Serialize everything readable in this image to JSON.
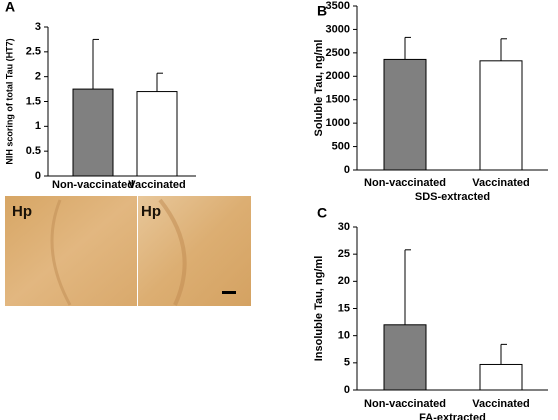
{
  "chart_data": [
    {
      "type": "bar",
      "panel": "A",
      "ylabel": "NIH scoring of total Tau (HT7)",
      "categories": [
        "Non-vaccinated",
        "Vaccinated"
      ],
      "values": [
        1.75,
        1.7
      ],
      "errors": [
        1.0,
        0.37
      ],
      "colors": [
        "#808080",
        "#ffffff"
      ],
      "ylim": [
        0,
        3
      ],
      "yticks": [
        0,
        0.5,
        1,
        1.5,
        2,
        2.5,
        3
      ]
    },
    {
      "type": "bar",
      "panel": "B",
      "ylabel": "Soluble Tau, ng/ml",
      "xlabel": "SDS-extracted",
      "categories": [
        "Non-vaccinated",
        "Vaccinated"
      ],
      "values": [
        2360,
        2330
      ],
      "errors": [
        470,
        470
      ],
      "colors": [
        "#808080",
        "#ffffff"
      ],
      "ylim": [
        0,
        3500
      ],
      "yticks": [
        0,
        500,
        1000,
        1500,
        2000,
        2500,
        3000,
        3500
      ]
    },
    {
      "type": "bar",
      "panel": "C",
      "ylabel": "Insoluble Tau, ng/ml",
      "xlabel": "FA-extracted",
      "categories": [
        "Non-vaccinated",
        "Vaccinated"
      ],
      "values": [
        12,
        4.7
      ],
      "errors": [
        13.8,
        3.7
      ],
      "colors": [
        "#808080",
        "#ffffff"
      ],
      "ylim": [
        0,
        30
      ],
      "yticks": [
        0,
        5,
        10,
        15,
        20,
        25,
        30
      ]
    }
  ],
  "micrograph": {
    "panels": [
      {
        "label": "Hp"
      },
      {
        "label": "Hp"
      }
    ]
  }
}
